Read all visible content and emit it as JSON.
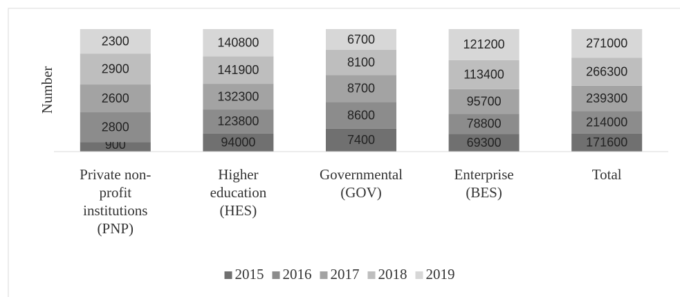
{
  "chart_data": {
    "type": "bar",
    "stacking": "percent",
    "y_label": "Number",
    "categories": [
      "Private non-profit institutions (PNP)",
      "Higher education (HES)",
      "Governmental (GOV)",
      "Enterprise (BES)",
      "Total"
    ],
    "series": [
      {
        "name": "2015",
        "color": "#707070",
        "values": [
          900,
          94000,
          7400,
          69300,
          171600
        ]
      },
      {
        "name": "2016",
        "color": "#8c8c8c",
        "values": [
          2800,
          123800,
          8600,
          78800,
          214000
        ]
      },
      {
        "name": "2017",
        "color": "#a3a3a3",
        "values": [
          2600,
          132300,
          8700,
          95700,
          239300
        ]
      },
      {
        "name": "2018",
        "color": "#bebebe",
        "values": [
          2900,
          141900,
          8100,
          113400,
          266300
        ]
      },
      {
        "name": "2019",
        "color": "#d7d7d7",
        "values": [
          2300,
          140800,
          6700,
          121200,
          271000
        ]
      }
    ],
    "legend": "bottom"
  }
}
